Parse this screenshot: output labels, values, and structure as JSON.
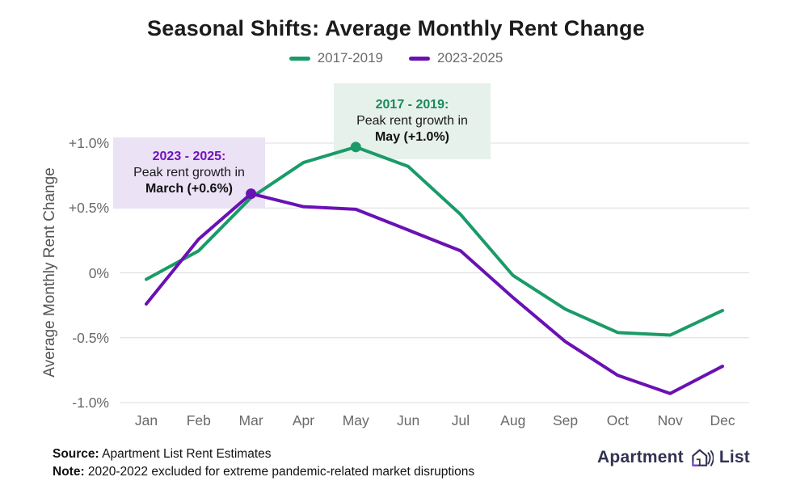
{
  "title": "Seasonal Shifts: Average Monthly Rent Change",
  "legend": {
    "items": [
      {
        "label": "2017-2019",
        "color": "#1a9b68"
      },
      {
        "label": "2023-2025",
        "color": "#6a11b4"
      }
    ]
  },
  "chart_data": {
    "type": "line",
    "title": "Seasonal Shifts: Average Monthly Rent Change",
    "ylabel": "Average Monthly Rent Change",
    "xlabel": "",
    "categories": [
      "Jan",
      "Feb",
      "Mar",
      "Apr",
      "May",
      "Jun",
      "Jul",
      "Aug",
      "Sep",
      "Oct",
      "Nov",
      "Dec"
    ],
    "series": [
      {
        "name": "2017-2019",
        "color": "#1a9b68",
        "values": [
          -0.05,
          0.17,
          0.58,
          0.85,
          0.97,
          0.82,
          0.45,
          -0.02,
          -0.28,
          -0.46,
          -0.48,
          -0.29
        ],
        "peak_index": 4
      },
      {
        "name": "2023-2025",
        "color": "#6a11b4",
        "values": [
          -0.24,
          0.26,
          0.61,
          0.51,
          0.49,
          0.33,
          0.17,
          -0.19,
          -0.53,
          -0.79,
          -0.93,
          -0.72
        ],
        "peak_index": 2
      }
    ],
    "ylim": [
      -1.0,
      1.0
    ],
    "yticks": [
      {
        "value": 1.0,
        "label": "+1.0%"
      },
      {
        "value": 0.5,
        "label": "+0.5%"
      },
      {
        "value": 0.0,
        "label": "0%"
      },
      {
        "value": -0.5,
        "label": "-0.5%"
      },
      {
        "value": -1.0,
        "label": "-1.0%"
      }
    ],
    "grid": true,
    "legend_position": "top"
  },
  "annotations": {
    "green": {
      "heading": "2017 - 2019:",
      "line2": "Peak rent growth in",
      "line3": "May (+1.0%)"
    },
    "purple": {
      "heading": "2023 - 2025:",
      "line2": "Peak rent growth in",
      "line3": "March (+0.6%)"
    }
  },
  "footer": {
    "source_label": "Source:",
    "source_text": " Apartment List Rent Estimates",
    "note_label": "Note:",
    "note_text": " 2020-2022 excluded for extreme pandemic-related market disruptions"
  },
  "logo": {
    "word1": "Apartment",
    "word2": "List",
    "dark": "#313253",
    "accent": "#7c3aed"
  },
  "colors": {
    "gridline": "#dcdcdc",
    "axis_text": "#696969"
  }
}
